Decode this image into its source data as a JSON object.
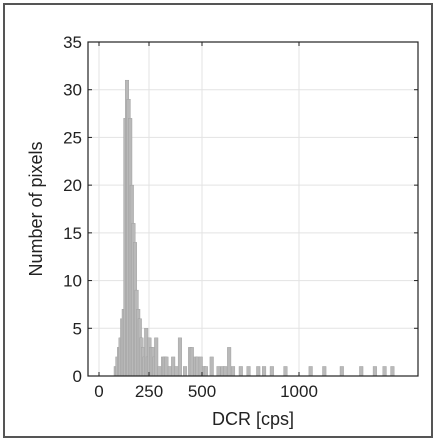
{
  "chart_data": {
    "type": "bar",
    "title": "",
    "xlabel": "DCR [cps]",
    "ylabel": "Number of pixels",
    "xlim": [
      -50,
      1550
    ],
    "ylim": [
      0,
      35
    ],
    "xticks": [
      0,
      250,
      500,
      1000
    ],
    "xtick_labels": [
      "0",
      "250",
      "500",
      "1000"
    ],
    "yticks": [
      0,
      5,
      10,
      15,
      20,
      25,
      30,
      35
    ],
    "ytick_labels": [
      "0",
      "5",
      "10",
      "15",
      "20",
      "25",
      "30",
      "35"
    ],
    "x_scale": "nonlinear (250 at ~0.31 of the 1000 span)",
    "grid": true,
    "legend": "none",
    "bar_color": "#b9b9b9",
    "bar_edge_color": "#9a9a9a",
    "bins": [
      {
        "x": 84,
        "v": 1
      },
      {
        "x": 92,
        "v": 2
      },
      {
        "x": 100,
        "v": 3
      },
      {
        "x": 108,
        "v": 4
      },
      {
        "x": 116,
        "v": 6
      },
      {
        "x": 124,
        "v": 7
      },
      {
        "x": 132,
        "v": 27
      },
      {
        "x": 140,
        "v": 31
      },
      {
        "x": 148,
        "v": 29
      },
      {
        "x": 156,
        "v": 27
      },
      {
        "x": 164,
        "v": 20
      },
      {
        "x": 172,
        "v": 16
      },
      {
        "x": 180,
        "v": 14
      },
      {
        "x": 188,
        "v": 9
      },
      {
        "x": 196,
        "v": 7
      },
      {
        "x": 204,
        "v": 6
      },
      {
        "x": 212,
        "v": 4
      },
      {
        "x": 220,
        "v": 3
      },
      {
        "x": 228,
        "v": 2
      },
      {
        "x": 236,
        "v": 5
      },
      {
        "x": 244,
        "v": 2
      },
      {
        "x": 252,
        "v": 4
      },
      {
        "x": 260,
        "v": 3
      },
      {
        "x": 268,
        "v": 3
      },
      {
        "x": 276,
        "v": 2
      },
      {
        "x": 284,
        "v": 4
      },
      {
        "x": 300,
        "v": 1
      },
      {
        "x": 316,
        "v": 2
      },
      {
        "x": 324,
        "v": 2
      },
      {
        "x": 332,
        "v": 2
      },
      {
        "x": 348,
        "v": 1
      },
      {
        "x": 364,
        "v": 2
      },
      {
        "x": 380,
        "v": 1
      },
      {
        "x": 396,
        "v": 4
      },
      {
        "x": 420,
        "v": 1
      },
      {
        "x": 444,
        "v": 3
      },
      {
        "x": 452,
        "v": 3
      },
      {
        "x": 470,
        "v": 2
      },
      {
        "x": 478,
        "v": 2
      },
      {
        "x": 494,
        "v": 2
      },
      {
        "x": 510,
        "v": 1
      },
      {
        "x": 520,
        "v": 1
      },
      {
        "x": 550,
        "v": 2
      },
      {
        "x": 585,
        "v": 1
      },
      {
        "x": 605,
        "v": 1
      },
      {
        "x": 620,
        "v": 1
      },
      {
        "x": 640,
        "v": 3
      },
      {
        "x": 660,
        "v": 1
      },
      {
        "x": 700,
        "v": 1
      },
      {
        "x": 740,
        "v": 1
      },
      {
        "x": 790,
        "v": 1
      },
      {
        "x": 820,
        "v": 1
      },
      {
        "x": 860,
        "v": 1
      },
      {
        "x": 930,
        "v": 1
      },
      {
        "x": 1060,
        "v": 1
      },
      {
        "x": 1130,
        "v": 1
      },
      {
        "x": 1220,
        "v": 1
      },
      {
        "x": 1320,
        "v": 1
      },
      {
        "x": 1390,
        "v": 1
      },
      {
        "x": 1440,
        "v": 1
      },
      {
        "x": 1480,
        "v": 1
      }
    ]
  }
}
